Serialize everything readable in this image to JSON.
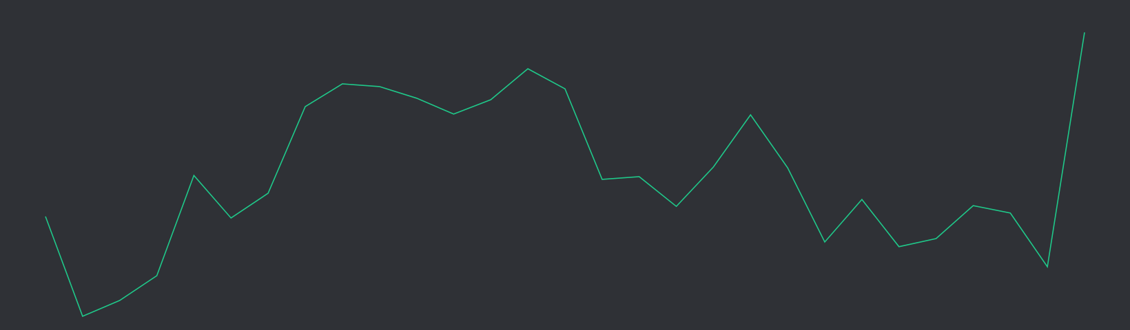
{
  "chart_data": {
    "type": "line",
    "title": "",
    "xlabel": "",
    "ylabel": "",
    "grid": false,
    "legend": "none",
    "x": [
      1,
      2,
      3,
      4,
      5,
      6,
      7,
      8,
      9,
      10,
      11,
      12,
      13,
      14,
      15,
      16,
      17,
      18,
      19,
      20,
      21,
      22,
      23,
      24,
      25,
      26,
      27,
      28,
      29
    ],
    "xlim": [
      1,
      29
    ],
    "ylim": [
      0,
      100
    ],
    "series": [
      {
        "values": [
          40.3,
          0.0,
          6.4,
          16.4,
          56.9,
          39.7,
          49.7,
          84.7,
          93.9,
          92.8,
          88.1,
          81.7,
          87.5,
          100.0,
          91.9,
          55.3,
          56.4,
          44.4,
          60.3,
          81.4,
          60.0,
          30.0,
          47.2,
          28.1,
          31.4,
          44.7,
          41.7,
          20.0,
          114.7
        ],
        "color": "#1fc98a"
      }
    ],
    "background": "#2f3136"
  }
}
